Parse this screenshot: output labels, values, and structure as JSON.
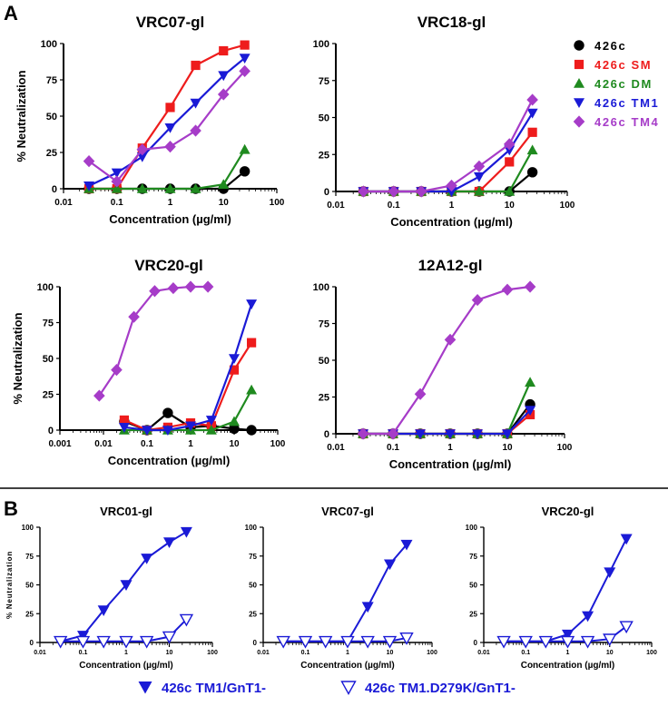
{
  "panel_labels": {
    "A": "A",
    "B": "B"
  },
  "colors": {
    "426c": "#000000",
    "426c SM": "#ee1c1c",
    "426c DM": "#1f8a1f",
    "426c TM1": "#1a1ad6",
    "426c TM4": "#a63cc8",
    "B_blue": "#1a1ad6"
  },
  "legend_A": [
    {
      "label": "426c",
      "series": "426c"
    },
    {
      "label": "426c SM",
      "series": "426c SM"
    },
    {
      "label": "426c DM",
      "series": "426c DM"
    },
    {
      "label": "426c TM1",
      "series": "426c TM1"
    },
    {
      "label": "426c TM4",
      "series": "426c TM4"
    }
  ],
  "legend_B": [
    {
      "label": "426c TM1/GnT1-",
      "marker": "filled-down-triangle"
    },
    {
      "label": "426c TM1.D279K/GnT1-",
      "marker": "open-down-triangle"
    }
  ],
  "chart_data": [
    {
      "id": "A1",
      "type": "line",
      "title": "VRC07-gl",
      "xlabel": "Concentration (µg/ml)",
      "ylabel": "% Neutralization",
      "xscale": "log",
      "xlim": [
        0.01,
        100
      ],
      "ylim": [
        0,
        100
      ],
      "xticks": [
        "0.01",
        "0.1",
        "1",
        "10",
        "100"
      ],
      "yticks": [
        "0",
        "25",
        "50",
        "75",
        "100"
      ],
      "series": [
        {
          "name": "426c",
          "x": [
            0.03,
            0.1,
            0.3,
            1,
            3,
            10,
            25
          ],
          "y": [
            0,
            0,
            0,
            0,
            0,
            0,
            12
          ]
        },
        {
          "name": "426c SM",
          "x": [
            0.03,
            0.1,
            0.3,
            1,
            3,
            10,
            25
          ],
          "y": [
            0,
            0,
            28,
            56,
            85,
            95,
            99
          ]
        },
        {
          "name": "426c DM",
          "x": [
            0.03,
            0.1,
            0.3,
            1,
            3,
            10,
            25
          ],
          "y": [
            0,
            0,
            0,
            0,
            0,
            3,
            27
          ]
        },
        {
          "name": "426c TM1",
          "x": [
            0.03,
            0.1,
            0.3,
            1,
            3,
            10,
            25
          ],
          "y": [
            2,
            11,
            22,
            42,
            59,
            78,
            90
          ]
        },
        {
          "name": "426c TM4",
          "x": [
            0.03,
            0.1,
            0.3,
            1,
            3,
            10,
            25
          ],
          "y": [
            19,
            5,
            27,
            29,
            40,
            65,
            81
          ]
        }
      ]
    },
    {
      "id": "A2",
      "type": "line",
      "title": "VRC18-gl",
      "xlabel": "Concentration (µg/ml)",
      "ylabel": "",
      "xscale": "log",
      "xlim": [
        0.01,
        100
      ],
      "ylim": [
        0,
        100
      ],
      "xticks": [
        "0.01",
        "0.1",
        "1",
        "10",
        "100"
      ],
      "yticks": [
        "0",
        "25",
        "50",
        "75",
        "100"
      ],
      "series": [
        {
          "name": "426c",
          "x": [
            0.03,
            0.1,
            0.3,
            1,
            3,
            10,
            25
          ],
          "y": [
            0,
            0,
            0,
            0,
            0,
            0,
            13
          ]
        },
        {
          "name": "426c SM",
          "x": [
            0.03,
            0.1,
            0.3,
            1,
            3,
            10,
            25
          ],
          "y": [
            0,
            0,
            0,
            0,
            0,
            20,
            40
          ]
        },
        {
          "name": "426c DM",
          "x": [
            0.03,
            0.1,
            0.3,
            1,
            3,
            10,
            25
          ],
          "y": [
            0,
            0,
            0,
            0,
            0,
            0,
            28
          ]
        },
        {
          "name": "426c TM1",
          "x": [
            0.03,
            0.1,
            0.3,
            1,
            3,
            10,
            25
          ],
          "y": [
            0,
            0,
            0,
            0,
            10,
            28,
            53
          ]
        },
        {
          "name": "426c TM4",
          "x": [
            0.03,
            0.1,
            0.3,
            1,
            3,
            10,
            25
          ],
          "y": [
            0,
            0,
            0,
            4,
            17,
            32,
            62
          ]
        }
      ]
    },
    {
      "id": "A3",
      "type": "line",
      "title": "VRC20-gl",
      "xlabel": "Concentration (µg/ml)",
      "ylabel": "% Neutralization",
      "xscale": "log",
      "xlim": [
        0.001,
        100
      ],
      "ylim": [
        0,
        100
      ],
      "xticks": [
        "0.001",
        "0.01",
        "0.1",
        "1",
        "10",
        "100"
      ],
      "yticks": [
        "0",
        "25",
        "50",
        "75",
        "100"
      ],
      "series": [
        {
          "name": "426c",
          "x": [
            0.03,
            0.1,
            0.3,
            1,
            3,
            10,
            25
          ],
          "y": [
            6,
            0,
            12,
            2,
            3,
            1,
            0
          ]
        },
        {
          "name": "426c SM",
          "x": [
            0.03,
            0.1,
            0.3,
            1,
            3,
            10,
            25
          ],
          "y": [
            7,
            0,
            2,
            5,
            3,
            42,
            61
          ]
        },
        {
          "name": "426c DM",
          "x": [
            0.03,
            0.1,
            0.3,
            1,
            3,
            10,
            25
          ],
          "y": [
            0,
            0,
            0,
            0,
            0,
            6,
            28
          ]
        },
        {
          "name": "426c TM1",
          "x": [
            0.03,
            0.1,
            0.3,
            1,
            3,
            10,
            25
          ],
          "y": [
            2,
            0,
            0,
            3,
            7,
            50,
            88
          ]
        },
        {
          "name": "426c TM4",
          "x": [
            0.008,
            0.02,
            0.05,
            0.15,
            0.4,
            1,
            2.5
          ],
          "y": [
            24,
            42,
            79,
            97,
            99,
            100,
            100
          ]
        }
      ]
    },
    {
      "id": "A4",
      "type": "line",
      "title": "12A12-gl",
      "xlabel": "Concentration (µg/ml)",
      "ylabel": "",
      "xscale": "log",
      "xlim": [
        0.01,
        100
      ],
      "ylim": [
        0,
        100
      ],
      "xticks": [
        "0.01",
        "0.1",
        "1",
        "10",
        "100"
      ],
      "yticks": [
        "0",
        "25",
        "50",
        "75",
        "100"
      ],
      "series": [
        {
          "name": "426c",
          "x": [
            0.03,
            0.1,
            0.3,
            1,
            3,
            10,
            25
          ],
          "y": [
            0,
            0,
            0,
            0,
            0,
            0,
            20
          ]
        },
        {
          "name": "426c SM",
          "x": [
            0.03,
            0.1,
            0.3,
            1,
            3,
            10,
            25
          ],
          "y": [
            0,
            0,
            0,
            0,
            0,
            0,
            13
          ]
        },
        {
          "name": "426c DM",
          "x": [
            0.03,
            0.1,
            0.3,
            1,
            3,
            10,
            25
          ],
          "y": [
            0,
            0,
            0,
            0,
            0,
            0,
            35
          ]
        },
        {
          "name": "426c TM1",
          "x": [
            0.03,
            0.1,
            0.3,
            1,
            3,
            10,
            25
          ],
          "y": [
            0,
            0,
            0,
            0,
            0,
            0,
            16
          ]
        },
        {
          "name": "426c TM4",
          "x": [
            0.03,
            0.1,
            0.3,
            1,
            3,
            10,
            25
          ],
          "y": [
            0,
            0,
            27,
            64,
            91,
            98,
            100
          ]
        }
      ]
    },
    {
      "id": "B1",
      "type": "line",
      "title": "VRC01-gl",
      "xlabel": "Concentration (µg/ml)",
      "ylabel": "% Neutralization",
      "xscale": "log",
      "xlim": [
        0.01,
        100
      ],
      "ylim": [
        0,
        100
      ],
      "xticks": [
        "0.01",
        "0.1",
        "1",
        "10",
        "100"
      ],
      "yticks": [
        "0",
        "25",
        "50",
        "75",
        "100"
      ],
      "series": [
        {
          "name": "426c TM1/GnT1-",
          "marker": "filled",
          "x": [
            0.03,
            0.1,
            0.3,
            1,
            3,
            10,
            25
          ],
          "y": [
            1,
            6,
            28,
            50,
            73,
            87,
            96
          ]
        },
        {
          "name": "426c TM1.D279K/GnT1-",
          "marker": "open",
          "x": [
            0.03,
            0.1,
            0.3,
            1,
            3,
            10,
            25
          ],
          "y": [
            1,
            1,
            1,
            1,
            1,
            5,
            20
          ]
        }
      ]
    },
    {
      "id": "B2",
      "type": "line",
      "title": "VRC07-gl",
      "xlabel": "Concentration (µg/ml)",
      "ylabel": "",
      "xscale": "log",
      "xlim": [
        0.01,
        100
      ],
      "ylim": [
        0,
        100
      ],
      "xticks": [
        "0.01",
        "0.1",
        "1",
        "10",
        "100"
      ],
      "yticks": [
        "0",
        "25",
        "50",
        "75",
        "100"
      ],
      "series": [
        {
          "name": "426c TM1/GnT1-",
          "marker": "filled",
          "x": [
            0.03,
            0.1,
            0.3,
            1,
            3,
            10,
            25
          ],
          "y": [
            1,
            1,
            1,
            1,
            31,
            68,
            85
          ]
        },
        {
          "name": "426c TM1.D279K/GnT1-",
          "marker": "open",
          "x": [
            0.03,
            0.1,
            0.3,
            1,
            3,
            10,
            25
          ],
          "y": [
            1,
            1,
            1,
            1,
            1,
            1,
            4
          ]
        }
      ]
    },
    {
      "id": "B3",
      "type": "line",
      "title": "VRC20-gl",
      "xlabel": "Concentration (µg/ml)",
      "ylabel": "",
      "xscale": "log",
      "xlim": [
        0.01,
        100
      ],
      "ylim": [
        0,
        100
      ],
      "xticks": [
        "0.01",
        "0.1",
        "1",
        "10",
        "100"
      ],
      "yticks": [
        "0",
        "25",
        "50",
        "75",
        "100"
      ],
      "series": [
        {
          "name": "426c TM1/GnT1-",
          "marker": "filled",
          "x": [
            0.03,
            0.1,
            0.3,
            1,
            3,
            10,
            25
          ],
          "y": [
            1,
            1,
            1,
            7,
            23,
            61,
            90
          ]
        },
        {
          "name": "426c TM1.D279K/GnT1-",
          "marker": "open",
          "x": [
            0.03,
            0.1,
            0.3,
            1,
            3,
            10,
            25
          ],
          "y": [
            1,
            1,
            1,
            1,
            1,
            3,
            14
          ]
        }
      ]
    }
  ]
}
